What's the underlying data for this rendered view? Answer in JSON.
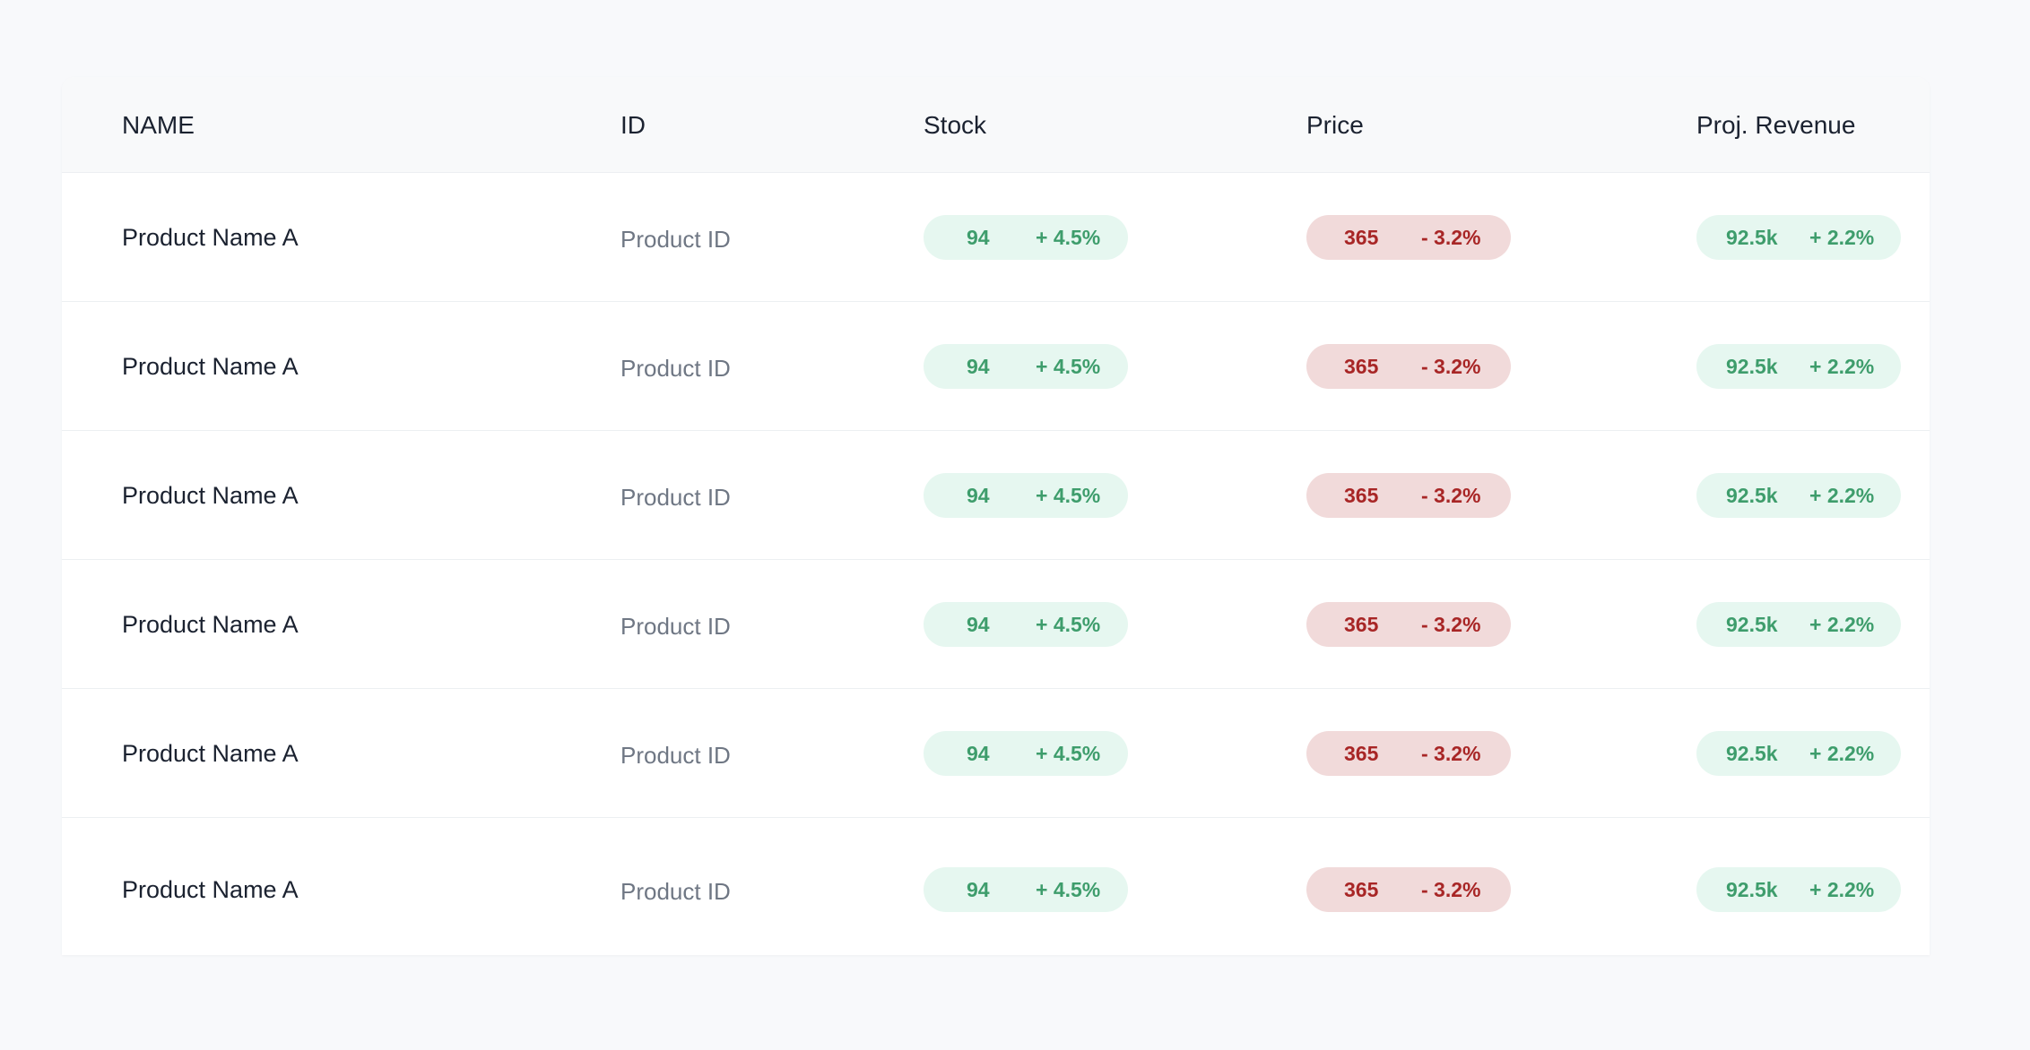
{
  "table": {
    "headers": {
      "name": "NAME",
      "id": "ID",
      "stock": "Stock",
      "price": "Price",
      "revenue": "Proj. Revenue"
    },
    "rows": [
      {
        "name": "Product Name A",
        "id": "Product ID",
        "stock": "94",
        "stock_delta": "+ 4.5%",
        "price": "365",
        "price_delta": "- 3.2%",
        "revenue": "92.5k",
        "revenue_delta": "+ 2.2%"
      },
      {
        "name": "Product Name A",
        "id": "Product ID",
        "stock": "94",
        "stock_delta": "+ 4.5%",
        "price": "365",
        "price_delta": "- 3.2%",
        "revenue": "92.5k",
        "revenue_delta": "+ 2.2%"
      },
      {
        "name": "Product Name A",
        "id": "Product ID",
        "stock": "94",
        "stock_delta": "+ 4.5%",
        "price": "365",
        "price_delta": "- 3.2%",
        "revenue": "92.5k",
        "revenue_delta": "+ 2.2%"
      },
      {
        "name": "Product Name A",
        "id": "Product ID",
        "stock": "94",
        "stock_delta": "+ 4.5%",
        "price": "365",
        "price_delta": "- 3.2%",
        "revenue": "92.5k",
        "revenue_delta": "+ 2.2%"
      },
      {
        "name": "Product Name A",
        "id": "Product ID",
        "stock": "94",
        "stock_delta": "+ 4.5%",
        "price": "365",
        "price_delta": "- 3.2%",
        "revenue": "92.5k",
        "revenue_delta": "+ 2.2%"
      },
      {
        "name": "Product Name A",
        "id": "Product ID",
        "stock": "94",
        "stock_delta": "+ 4.5%",
        "price": "365",
        "price_delta": "- 3.2%",
        "revenue": "92.5k",
        "revenue_delta": "+ 2.2%"
      }
    ]
  },
  "colors": {
    "positive_bg": "#e6f7f0",
    "positive_text": "#3e9d6c",
    "negative_bg": "#f1dada",
    "negative_text": "#a82626"
  }
}
